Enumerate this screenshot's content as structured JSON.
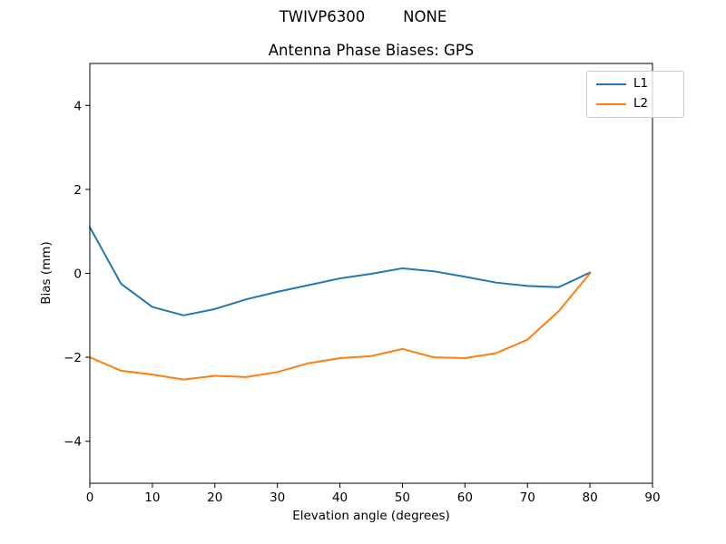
{
  "header": {
    "suptitle": "TWIVP6300        NONE"
  },
  "chart_data": {
    "type": "line",
    "title": "Antenna Phase Biases: GPS",
    "xlabel": "Elevation angle (degrees)",
    "ylabel": "Bias (mm)",
    "xlim": [
      0,
      90
    ],
    "ylim": [
      -5,
      5
    ],
    "xticks": [
      0,
      10,
      20,
      30,
      40,
      50,
      60,
      70,
      80,
      90
    ],
    "yticks": [
      -4,
      -2,
      0,
      2,
      4
    ],
    "grid": false,
    "legend_position": "upper right",
    "x": [
      0,
      5,
      10,
      15,
      20,
      25,
      30,
      35,
      40,
      45,
      50,
      55,
      60,
      65,
      70,
      75,
      80
    ],
    "series": [
      {
        "name": "L1",
        "color": "#1f77b4",
        "values": [
          1.1,
          -0.25,
          -0.8,
          -1.0,
          -0.85,
          -0.62,
          -0.44,
          -0.28,
          -0.12,
          -0.01,
          0.12,
          0.05,
          -0.08,
          -0.22,
          -0.3,
          -0.33,
          0.02
        ]
      },
      {
        "name": "L2",
        "color": "#ff7f0e",
        "values": [
          -2.0,
          -2.32,
          -2.41,
          -2.53,
          -2.44,
          -2.47,
          -2.35,
          -2.14,
          -2.02,
          -1.97,
          -1.8,
          -2.0,
          -2.02,
          -1.9,
          -1.58,
          -0.9,
          0.0
        ]
      }
    ]
  }
}
